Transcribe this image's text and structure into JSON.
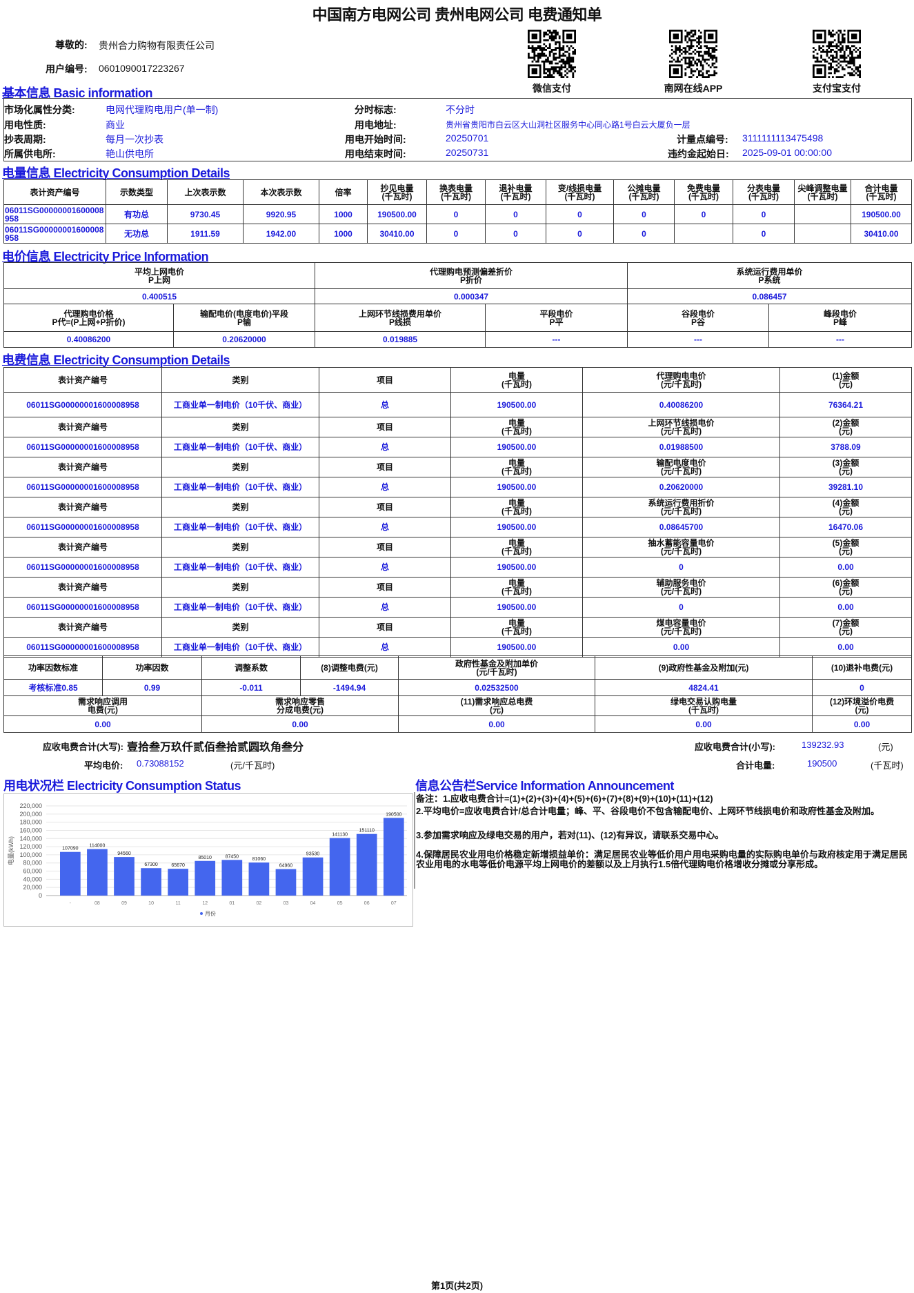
{
  "header": {
    "title": "中国南方电网公司 贵州电网公司 电费通知单",
    "greeting_label": "尊敬的:",
    "customer_name": "贵州合力购物有限责任公司",
    "user_no_label": "用户编号:",
    "user_no": "0601090017223267",
    "qr_codes": [
      {
        "icon": "qr-code-icon",
        "label": "微信支付"
      },
      {
        "icon": "qr-code-icon",
        "label": "南网在线APP"
      },
      {
        "icon": "qr-code-icon",
        "label": "支付宝支付"
      }
    ]
  },
  "basic": {
    "title": "基本信息 Basic information",
    "market_label": "市场化属性分类:",
    "market": "电网代理购电用户(单一制)",
    "tou_label": "分时标志:",
    "tou": "不分时",
    "nature_label": "用电性质:",
    "nature": "商业",
    "address_label": "用电地址:",
    "address": "贵州省贵阳市白云区大山洞社区服务中心同心路1号白云大厦负一层",
    "cycle_label": "抄表周期:",
    "cycle": "每月一次抄表",
    "start_label": "用电开始时间:",
    "start": "20250701",
    "meter_point_label": "计量点编号:",
    "meter_point": "3111111113475498",
    "station_label": "所属供电所:",
    "station": "艳山供电所",
    "end_label": "用电结束时间:",
    "end": "20250731",
    "penalty_label": "违约金起始日:",
    "penalty": "2025-09-01 00:00:00"
  },
  "consumption": {
    "title": "电量信息 Electricity Consumption Details",
    "headers": [
      "表计资产编号",
      "示数类型",
      "上次表示数",
      "本次表示数",
      "倍率",
      "抄见电量\n(千瓦时)",
      "换表电量\n(千瓦时)",
      "退补电量\n(千瓦时)",
      "变/线损电量\n(千瓦时)",
      "公摊电量\n(千瓦时)",
      "免费电量\n(千瓦时)",
      "分表电量\n(千瓦时)",
      "尖峰调整电量\n(千瓦时)",
      "合计电量\n(千瓦时)"
    ],
    "rows": [
      [
        "06011SG00000001600008958",
        "有功总",
        "9730.45",
        "9920.95",
        "1000",
        "190500.00",
        "0",
        "0",
        "0",
        "0",
        "0",
        "0",
        "",
        "190500.00"
      ],
      [
        "06011SG00000001600008958",
        "无功总",
        "1911.59",
        "1942.00",
        "1000",
        "30410.00",
        "0",
        "0",
        "0",
        "0",
        "",
        "0",
        "",
        "30410.00"
      ]
    ]
  },
  "price": {
    "title": "电价信息 Electricity Price Information",
    "top": [
      {
        "label": "平均上网电价\nP上网",
        "value": "0.400515"
      },
      {
        "label": "代理购电预测偏差折价\nP折价",
        "value": "0.000347"
      },
      {
        "label": "系统运行费用单价\nP系统",
        "value": "0.086457"
      }
    ],
    "bottom": [
      {
        "label": "代理购电价格\nP代=(P上网+P折价)",
        "value": "0.40086200"
      },
      {
        "label": "输配电价(电度电价)平段\nP输",
        "value": "0.20620000"
      },
      {
        "label": "上网环节线损费用单价\nP线损",
        "value": "0.019885"
      },
      {
        "label": "平段电价\nP平",
        "value": "---"
      },
      {
        "label": "谷段电价\nP谷",
        "value": "---"
      },
      {
        "label": "峰段电价\nP峰",
        "value": "---"
      }
    ]
  },
  "fees": {
    "title": "电费信息 Electricity Consumption Details",
    "h_asset": "表计资产编号",
    "h_category": "类别",
    "h_item": "项目",
    "h_qty": "电量\n(千瓦时)",
    "asset": "06011SG00000001600008958",
    "category": "工商业单一制电价（10千伏、商业）",
    "item": "总",
    "qty": "190500.00",
    "blocks": [
      {
        "price_label": "代理购电电价\n(元/千瓦时)",
        "amount_label": "(1)金额\n(元)",
        "price": "0.40086200",
        "amount": "76364.21"
      },
      {
        "price_label": "上网环节线损电价\n(元/千瓦时)",
        "amount_label": "(2)金额\n(元)",
        "price": "0.01988500",
        "amount": "3788.09"
      },
      {
        "price_label": "输配电度电价\n(元/千瓦时)",
        "amount_label": "(3)金额\n(元)",
        "price": "0.20620000",
        "amount": "39281.10"
      },
      {
        "price_label": "系统运行费用折价\n(元/千瓦时)",
        "amount_label": "(4)金额\n(元)",
        "price": "0.08645700",
        "amount": "16470.06"
      },
      {
        "price_label": "抽水蓄能容量电价\n(元/千瓦时)",
        "amount_label": "(5)金额\n(元)",
        "price": "0",
        "amount": "0.00"
      },
      {
        "price_label": "辅助服务电价\n(元/千瓦时)",
        "amount_label": "(6)金额\n(元)",
        "price": "0",
        "amount": "0.00"
      },
      {
        "price_label": "煤电容量电价\n(元/千瓦时)",
        "amount_label": "(7)金额\n(元)",
        "price": "0.00",
        "amount": "0.00"
      }
    ]
  },
  "adjust": {
    "headers1": [
      "功率因数标准",
      "功率因数",
      "调整系数",
      "(8)调整电费(元)",
      "政府性基金及附加单价\n(元/千瓦时)",
      "(9)政府性基金及附加(元)",
      "(10)退补电费(元)"
    ],
    "values1": [
      "考核标准0.85",
      "0.99",
      "-0.011",
      "-1494.94",
      "0.02532500",
      "4824.41",
      "0"
    ],
    "headers2": [
      "需求响应调用\n电费(元)",
      "需求响应零售\n分成电费(元)",
      "(11)需求响应总电费\n(元)",
      "绿电交易认购电量\n(千瓦时)",
      "(12)环境溢价电费\n(元)"
    ],
    "values2": [
      "0.00",
      "0.00",
      "0.00",
      "0.00",
      "0.00"
    ]
  },
  "totals": {
    "upper_label": "应收电费合计(大写):",
    "upper": "壹拾叁万玖仟贰佰叁拾贰圆玖角叁分",
    "lower_label": "应收电费合计(小写):",
    "lower": "139232.93",
    "lower_unit": "(元)",
    "avg_label": "平均电价:",
    "avg": "0.73088152",
    "avg_unit": "(元/千瓦时)",
    "qty_label": "合计电量:",
    "qty": "190500",
    "qty_unit": "(千瓦时)"
  },
  "status": {
    "title": "用电状况栏 Electricity Consumption Status"
  },
  "chart_data": {
    "type": "bar",
    "categories": [
      "-",
      "08",
      "09",
      "10",
      "11",
      "12",
      "01",
      "02",
      "03",
      "04",
      "05",
      "06",
      "07"
    ],
    "values": [
      107090,
      114000,
      94560,
      67300,
      65670,
      85010,
      87450,
      81060,
      64960,
      93530,
      141130,
      151110,
      190500
    ],
    "ylabel": "电量(kWh)",
    "ylim": [
      0,
      220000
    ],
    "yticks": [
      "0",
      "20,000",
      "40,000",
      "60,000",
      "80,000",
      "100,000",
      "120,000",
      "140,000",
      "160,000",
      "180,000",
      "200,000",
      "220,000"
    ],
    "legend": "月份",
    "legend_position": "bottom",
    "grid": true,
    "color": "#4466ee"
  },
  "notice": {
    "title": "信息公告栏Service Information Announcement",
    "lines": [
      "备注：1.应收电费合计=(1)+(2)+(3)+(4)+(5)+(6)+(7)+(8)+(9)+(10)+(11)+(12)",
      "2.平均电价=应收电费合计/总合计电量；峰、平、谷段电价不包含输配电价、上网环节线损电价和政府性基金及附加。",
      "3.参加需求响应及绿电交易的用户，若对(11)、(12)有异议，请联系交易中心。",
      "4.保障居民农业用电价格稳定新增损益单价：满足居民农业等低价用户用电采购电量的实际购电单价与政府核定用于满足居民农业用电的水电等低价电源平均上网电价的差额以及上月执行1.5倍代理购电价格增收分摊或分享形成。"
    ]
  },
  "footer": {
    "page": "第1页(共2页)"
  }
}
